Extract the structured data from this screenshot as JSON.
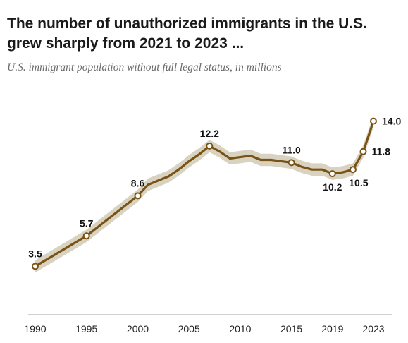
{
  "title": "The number of unauthorized immigrants in the U.S. grew sharply from 2021 to 2023 ...",
  "subtitle": "U.S. immigrant population without full legal status, in millions",
  "colors": {
    "line": "#7a5216",
    "band": "#d8d3c1",
    "marker_fill": "#ffffff",
    "axis": "#a0a0a0",
    "text": "#1a1a1a"
  },
  "chart_data": {
    "type": "line",
    "title": "The number of unauthorized immigrants in the U.S. grew sharply from 2021 to 2023 ...",
    "subtitle": "U.S. immigrant population without full legal status, in millions",
    "xlabel": "",
    "ylabel": "",
    "xlim": [
      1990,
      2023
    ],
    "ylim": [
      0,
      15
    ],
    "grid": false,
    "x_ticks": [
      "1990",
      "1995",
      "2000",
      "2005",
      "2010",
      "2015",
      "2019",
      "2023"
    ],
    "series": [
      {
        "x": [
          1990,
          1995,
          2000,
          2001,
          2002,
          2003,
          2004,
          2005,
          2006,
          2007,
          2008,
          2009,
          2010,
          2011,
          2012,
          2013,
          2014,
          2015,
          2016,
          2017,
          2018,
          2019,
          2020,
          2021,
          2022,
          2023
        ],
        "values": [
          3.5,
          5.7,
          8.6,
          9.4,
          9.7,
          10.0,
          10.5,
          11.1,
          11.6,
          12.2,
          11.8,
          11.3,
          11.4,
          11.5,
          11.2,
          11.2,
          11.1,
          11.0,
          10.7,
          10.5,
          10.5,
          10.2,
          10.3,
          10.5,
          11.8,
          14.0
        ],
        "markers": [
          1990,
          1995,
          2000,
          2007,
          2015,
          2019,
          2021,
          2022,
          2023
        ],
        "band_margin": 0.45
      }
    ],
    "data_labels": [
      {
        "x": 1990,
        "text": "3.5",
        "anchor": "above"
      },
      {
        "x": 1995,
        "text": "5.7",
        "anchor": "above"
      },
      {
        "x": 2000,
        "text": "8.6",
        "anchor": "above"
      },
      {
        "x": 2007,
        "text": "12.2",
        "anchor": "above"
      },
      {
        "x": 2015,
        "text": "11.0",
        "anchor": "above"
      },
      {
        "x": 2019,
        "text": "10.2",
        "anchor": "below"
      },
      {
        "x": 2021,
        "text": "10.5",
        "anchor": "below-right"
      },
      {
        "x": 2022,
        "text": "11.8",
        "anchor": "right"
      },
      {
        "x": 2023,
        "text": "14.0",
        "anchor": "right"
      }
    ]
  }
}
